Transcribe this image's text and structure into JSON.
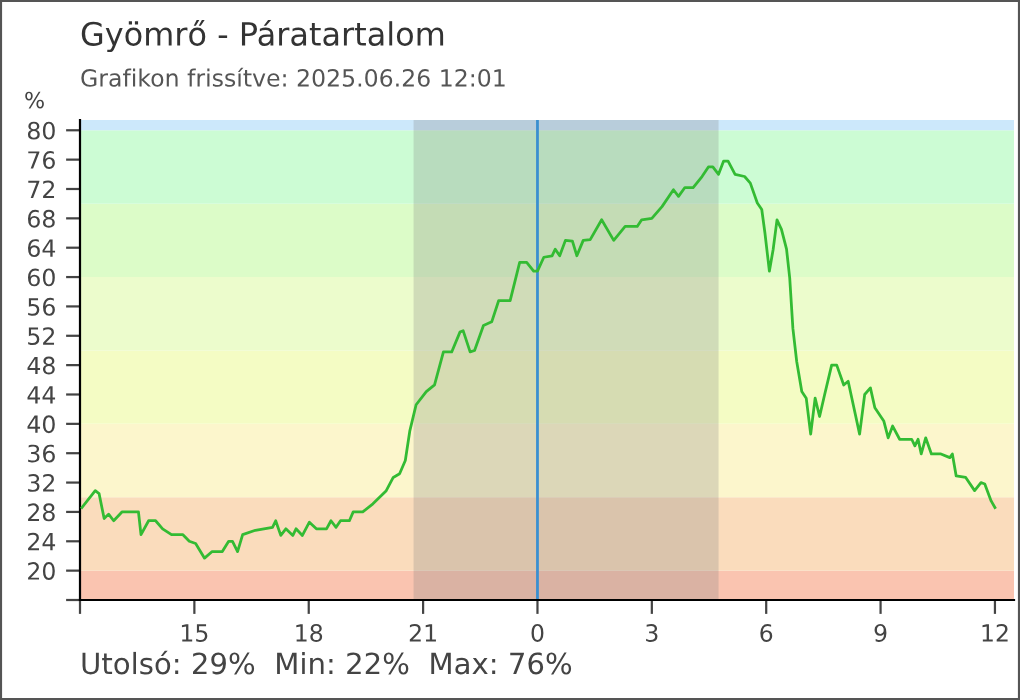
{
  "chart_data": {
    "type": "line",
    "title": "Gyömrő - Páratartalom",
    "subtitle": "Grafikon frissítve: 2025.06.26 12:01",
    "ylabel": "%",
    "annotations": [
      "Utolsó: 29%  Min: 22%  Max: 76%"
    ],
    "series": [
      {
        "color": "#33bb33",
        "x": [
          "2025-06-25T12:03",
          "2025-06-25T12:24",
          "2025-06-25T12:30",
          "2025-06-25T12:38",
          "2025-06-25T12:45",
          "2025-06-25T12:53",
          "2025-06-25T13:06",
          "2025-06-25T13:32",
          "2025-06-25T13:36",
          "2025-06-25T13:48",
          "2025-06-25T13:59",
          "2025-06-25T14:10",
          "2025-06-25T14:24",
          "2025-06-25T14:42",
          "2025-06-25T14:52",
          "2025-06-25T15:02",
          "2025-06-25T15:16",
          "2025-06-25T15:28",
          "2025-06-25T15:44",
          "2025-06-25T15:54",
          "2025-06-25T16:00",
          "2025-06-25T16:08",
          "2025-06-25T16:16",
          "2025-06-25T16:36",
          "2025-06-25T17:03",
          "2025-06-25T17:08",
          "2025-06-25T17:16",
          "2025-06-25T17:24",
          "2025-06-25T17:35",
          "2025-06-25T17:40",
          "2025-06-25T17:50",
          "2025-06-25T18:01",
          "2025-06-25T18:12",
          "2025-06-25T18:28",
          "2025-06-25T18:35",
          "2025-06-25T18:43",
          "2025-06-25T18:50",
          "2025-06-25T19:04",
          "2025-06-25T19:10",
          "2025-06-25T19:25",
          "2025-06-25T19:41",
          "2025-06-25T20:02",
          "2025-06-25T20:13",
          "2025-06-25T20:23",
          "2025-06-25T20:32",
          "2025-06-25T20:39",
          "2025-06-25T20:49",
          "2025-06-25T21:05",
          "2025-06-25T21:18",
          "2025-06-25T21:32",
          "2025-06-25T21:45",
          "2025-06-25T21:58",
          "2025-06-25T22:03",
          "2025-06-25T22:14",
          "2025-06-25T22:21",
          "2025-06-25T22:35",
          "2025-06-25T22:48",
          "2025-06-25T22:59",
          "2025-06-25T23:17",
          "2025-06-25T23:32",
          "2025-06-25T23:43",
          "2025-06-25T23:54",
          "2025-06-26T00:00",
          "2025-06-26T00:10",
          "2025-06-26T00:23",
          "2025-06-26T00:28",
          "2025-06-26T00:35",
          "2025-06-26T00:44",
          "2025-06-26T00:55",
          "2025-06-26T01:02",
          "2025-06-26T01:12",
          "2025-06-26T01:23",
          "2025-06-26T01:41",
          "2025-06-26T02:00",
          "2025-06-26T02:18",
          "2025-06-26T02:37",
          "2025-06-26T02:44",
          "2025-06-26T03:00",
          "2025-06-26T03:16",
          "2025-06-26T03:34",
          "2025-06-26T03:42",
          "2025-06-26T03:52",
          "2025-06-26T04:05",
          "2025-06-26T04:19",
          "2025-06-26T04:29",
          "2025-06-26T04:36",
          "2025-06-26T04:45",
          "2025-06-26T04:53",
          "2025-06-26T05:00",
          "2025-06-26T05:11",
          "2025-06-26T05:26",
          "2025-06-26T05:35",
          "2025-06-26T05:46",
          "2025-06-26T05:53",
          "2025-06-26T05:58",
          "2025-06-26T06:05",
          "2025-06-26T06:11",
          "2025-06-26T06:17",
          "2025-06-26T06:24",
          "2025-06-26T06:32",
          "2025-06-26T06:37",
          "2025-06-26T06:42",
          "2025-06-26T06:48",
          "2025-06-26T06:56",
          "2025-06-26T07:03",
          "2025-06-26T07:10",
          "2025-06-26T07:17",
          "2025-06-26T07:24",
          "2025-06-26T07:32",
          "2025-06-26T07:43",
          "2025-06-26T07:51",
          "2025-06-26T08:02",
          "2025-06-26T08:09",
          "2025-06-26T08:17",
          "2025-06-26T08:27",
          "2025-06-26T08:35",
          "2025-06-26T08:44",
          "2025-06-26T08:51",
          "2025-06-26T09:05",
          "2025-06-26T09:12",
          "2025-06-26T09:19",
          "2025-06-26T09:30",
          "2025-06-26T09:49",
          "2025-06-26T09:54",
          "2025-06-26T09:59",
          "2025-06-26T10:04",
          "2025-06-26T10:11",
          "2025-06-26T10:20",
          "2025-06-26T10:35",
          "2025-06-26T10:49",
          "2025-06-26T10:53",
          "2025-06-26T10:59",
          "2025-06-26T11:14",
          "2025-06-26T11:28",
          "2025-06-26T11:38",
          "2025-06-26T11:44",
          "2025-06-26T11:54",
          "2025-06-26T12:00"
        ],
        "values": [
          28.6,
          30.9,
          30.5,
          27.1,
          27.7,
          26.8,
          28,
          28,
          24.9,
          26.8,
          26.8,
          25.7,
          24.9,
          24.9,
          24,
          23.7,
          21.7,
          22.6,
          22.6,
          24,
          24,
          22.6,
          24.9,
          25.5,
          25.9,
          26.8,
          24.8,
          25.7,
          24.8,
          25.7,
          24.8,
          26.6,
          25.7,
          25.7,
          26.8,
          25.9,
          26.8,
          26.8,
          28,
          28,
          29.1,
          30.9,
          32.7,
          33.2,
          35,
          39,
          42.6,
          44.4,
          45.3,
          49.8,
          49.8,
          52.5,
          52.7,
          49.8,
          50,
          53.4,
          53.9,
          56.8,
          56.8,
          62,
          62,
          60.8,
          60.8,
          62.7,
          62.9,
          63.8,
          62.9,
          65,
          64.9,
          62.9,
          65,
          65.1,
          67.8,
          65,
          66.9,
          66.9,
          67.8,
          68,
          69.6,
          71.9,
          71,
          72.2,
          72.2,
          73.7,
          75,
          75,
          74,
          75.8,
          75.8,
          74,
          73.7,
          72.8,
          70.1,
          69.2,
          66,
          60.8,
          63.8,
          67.8,
          66.5,
          63.8,
          59.9,
          53,
          48.5,
          44.4,
          43.5,
          38.6,
          43.5,
          41,
          44,
          48,
          48,
          45.3,
          45.8,
          42.6,
          38.6,
          44,
          44.9,
          42.2,
          40.4,
          38.1,
          39.7,
          37.9,
          37.9,
          37,
          37.9,
          35.9,
          38.1,
          35.9,
          35.9,
          35.4,
          35.9,
          32.9,
          32.7,
          30.9,
          32,
          31.8,
          29.5,
          28.6
        ]
      }
    ],
    "xlim": [
      "2025-06-25T12:00",
      "2025-06-26T12:30"
    ],
    "xticks": [
      {
        "value": "2025-06-25T12:00",
        "label": null
      },
      {
        "value": "2025-06-25T15:00",
        "label": "15"
      },
      {
        "value": "2025-06-25T18:00",
        "label": "18"
      },
      {
        "value": "2025-06-25T21:00",
        "label": "21"
      },
      {
        "value": "2025-06-26T00:00",
        "label": "0"
      },
      {
        "value": "2025-06-26T03:00",
        "label": "3"
      },
      {
        "value": "2025-06-26T06:00",
        "label": "6"
      },
      {
        "value": "2025-06-26T09:00",
        "label": "9"
      },
      {
        "value": "2025-06-26T12:00",
        "label": "12"
      }
    ],
    "ylim": [
      16,
      81.4
    ],
    "yticks": [
      {
        "value": 16,
        "label": null
      },
      20,
      24,
      28,
      32,
      36,
      40,
      44,
      48,
      52,
      56,
      60,
      64,
      68,
      72,
      76,
      80
    ],
    "bands": [
      {
        "axis": "y",
        "from": 16,
        "to": 20,
        "color": "#fac4b0"
      },
      {
        "axis": "y",
        "from": 20,
        "to": 30,
        "color": "#fadcbc"
      },
      {
        "axis": "y",
        "from": 30,
        "to": 40,
        "color": "#fcf6cc"
      },
      {
        "axis": "y",
        "from": 40,
        "to": 50,
        "color": "#f4fcc4"
      },
      {
        "axis": "y",
        "from": 50,
        "to": 60,
        "color": "#ecfccc"
      },
      {
        "axis": "y",
        "from": 60,
        "to": 70,
        "color": "#dcfcc8"
      },
      {
        "axis": "y",
        "from": 70,
        "to": 80,
        "color": "#ccfcd4"
      },
      {
        "axis": "y",
        "from": 80,
        "to": 81.4,
        "color": "#cce8fb"
      },
      {
        "axis": "x",
        "from": "2025-06-25T20:45",
        "to": "2025-06-26T04:45",
        "color": "#7a7a7a"
      }
    ],
    "ref_lines": [
      {
        "axis": "x",
        "value": "2025-06-26T00:00",
        "color": "#3a8fd0"
      }
    ],
    "grid": false,
    "marker": "none",
    "line_style": "solid"
  }
}
